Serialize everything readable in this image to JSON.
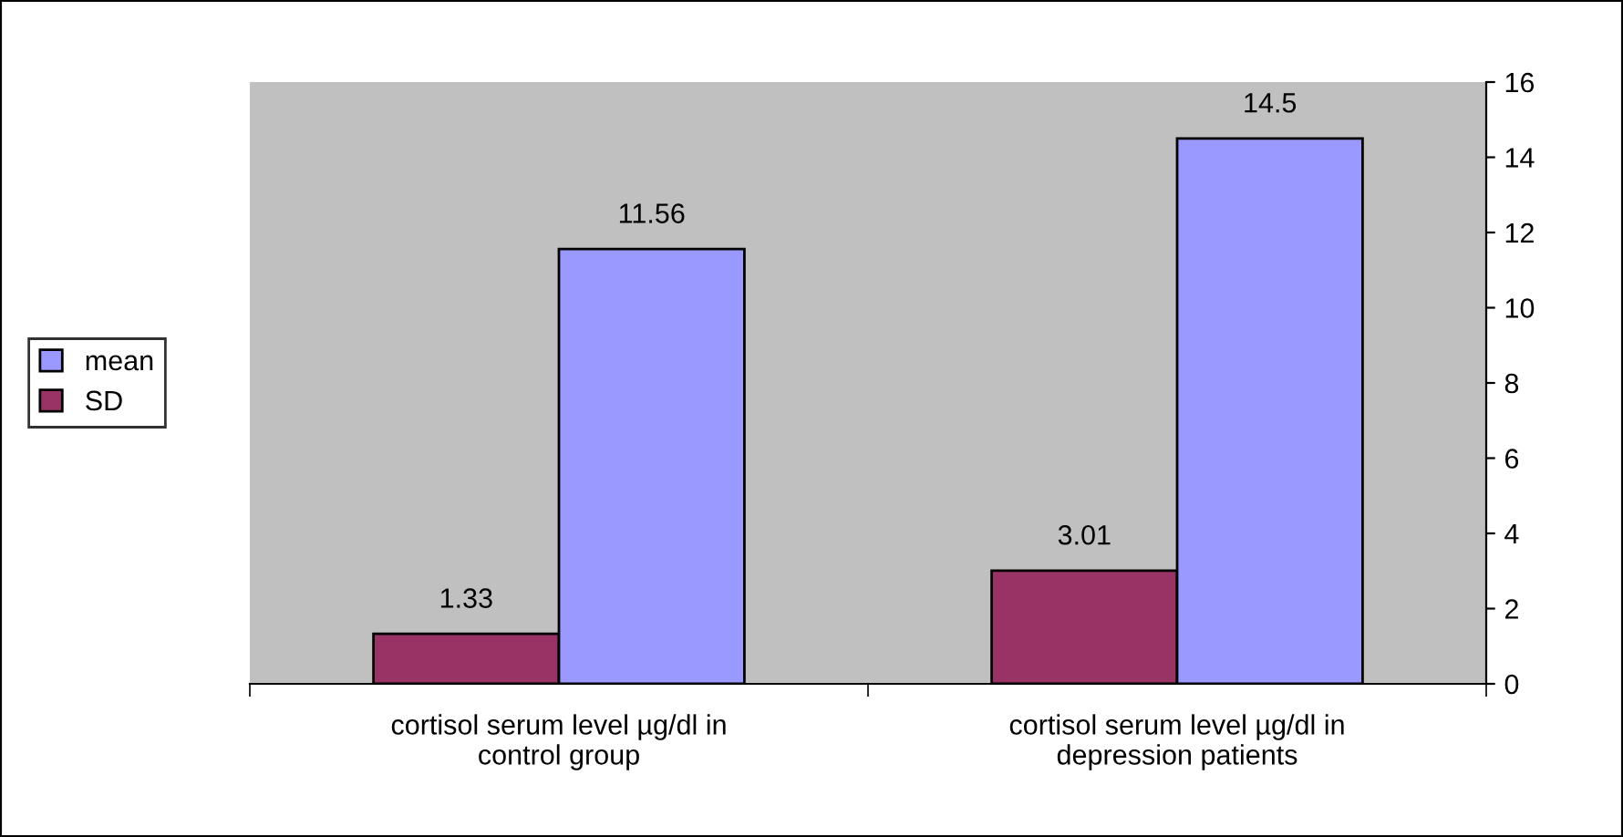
{
  "chart_data": {
    "type": "bar",
    "categories": [
      "cortisol serum level µg/dl in\ncontrol group",
      "cortisol serum level µg/dl in\ndepression patients"
    ],
    "series": [
      {
        "name": "SD",
        "color": "#993366",
        "values": [
          1.33,
          3.01
        ]
      },
      {
        "name": "mean",
        "color": "#9999ff",
        "values": [
          11.56,
          14.5
        ]
      }
    ],
    "ylim": [
      0,
      16
    ],
    "yticks": [
      0,
      2,
      4,
      6,
      8,
      10,
      12,
      14,
      16
    ],
    "data_labels": true,
    "grid": false,
    "legend": "left"
  }
}
